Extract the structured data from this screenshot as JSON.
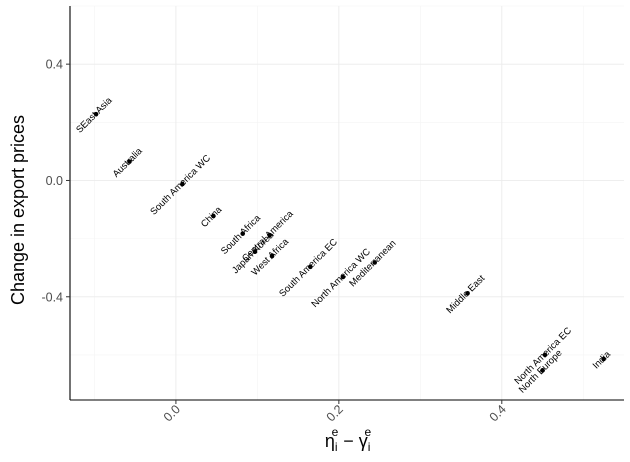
{
  "chart_data": {
    "type": "scatter",
    "ylabel": "Change in export prices",
    "xlabel_parts": {
      "main1": "η",
      "sup1": "e",
      "sub1": "i",
      "op": " − ",
      "main2": "γ",
      "sup2": "e",
      "sub2": "i"
    },
    "xlim": [
      -0.13,
      0.55
    ],
    "ylim": [
      -0.755,
      0.6
    ],
    "x_ticks": [
      0.0,
      0.2,
      0.4
    ],
    "x_tick_labels": [
      "0.0",
      "0.2",
      "0.4"
    ],
    "y_ticks": [
      -0.4,
      0.0,
      0.4
    ],
    "y_tick_labels": [
      "-0.4",
      "0.0",
      "0.4"
    ],
    "grid": true,
    "points": [
      {
        "label": "SEast Asia",
        "x": -0.098,
        "y": 0.228
      },
      {
        "label": "Australia",
        "x": -0.057,
        "y": 0.065
      },
      {
        "label": "South America WC",
        "x": 0.008,
        "y": -0.012
      },
      {
        "label": "China",
        "x": 0.046,
        "y": -0.122
      },
      {
        "label": "South Africa",
        "x": 0.082,
        "y": -0.183
      },
      {
        "label": "Central America",
        "x": 0.115,
        "y": -0.188
      },
      {
        "label": "Japan-Korea",
        "x": 0.097,
        "y": -0.245
      },
      {
        "label": "West Africa",
        "x": 0.118,
        "y": -0.26
      },
      {
        "label": "South America EC",
        "x": 0.165,
        "y": -0.297
      },
      {
        "label": "North America WC",
        "x": 0.205,
        "y": -0.332
      },
      {
        "label": "Mediterranean",
        "x": 0.244,
        "y": -0.282
      },
      {
        "label": "Middle East",
        "x": 0.358,
        "y": -0.388
      },
      {
        "label": "North America EC",
        "x": 0.453,
        "y": -0.6
      },
      {
        "label": "North Europe",
        "x": 0.45,
        "y": -0.653
      },
      {
        "label": "India",
        "x": 0.525,
        "y": -0.614
      }
    ]
  }
}
